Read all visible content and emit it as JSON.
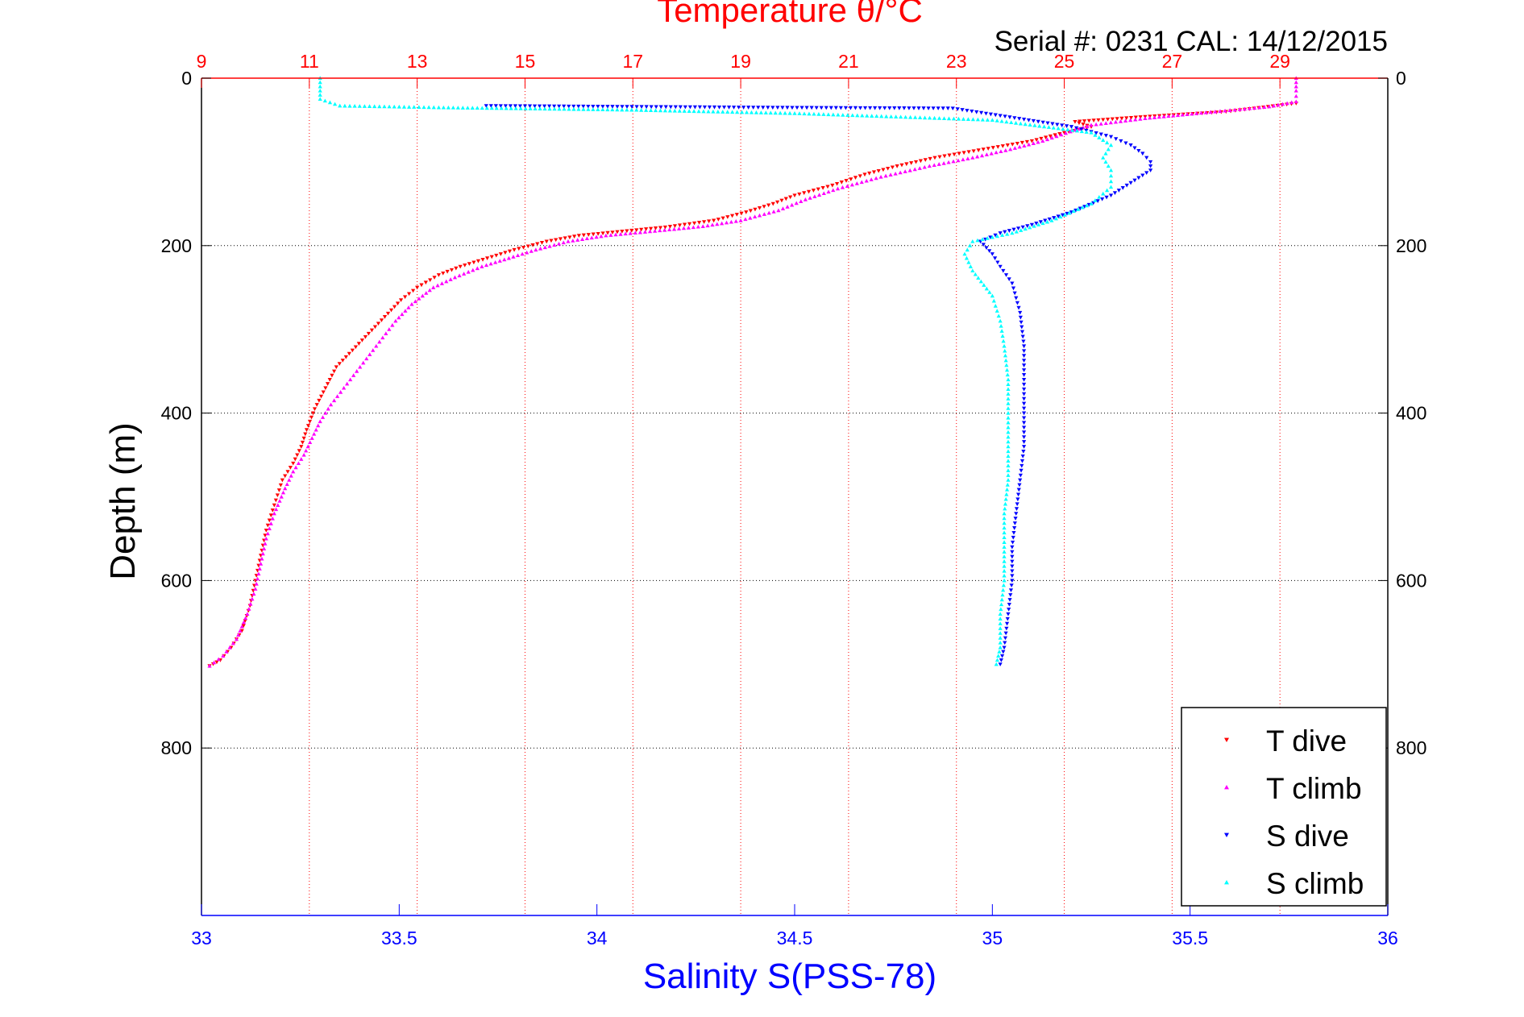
{
  "figure": {
    "title": "Temperature θ/°C",
    "subtitle": "Serial #: 0231  CAL: 14/12/2015",
    "colors": {
      "temperature_axis": "#ff0000",
      "salinity_axis": "#0000ff",
      "frame": "#000000",
      "grid": "#000000"
    }
  },
  "chart_data": [
    {
      "type": "scatter",
      "title": "Temperature θ/°C",
      "xlabel": "",
      "ylabel": "Depth (m)",
      "x_axis_position": "top",
      "xlim": [
        9,
        31
      ],
      "xticks": [
        9,
        11,
        13,
        15,
        17,
        19,
        21,
        23,
        25,
        27,
        29
      ],
      "ylim": [
        0,
        1000
      ],
      "y_reversed": true,
      "yticks": [
        0,
        200,
        400,
        600,
        800
      ],
      "grid": "dotted",
      "legend_position": "bottom-right",
      "series": [
        {
          "name": "T dive",
          "color": "#ff0000",
          "marker": "triangle-down",
          "points": [
            [
              29.3,
              30
            ],
            [
              28.0,
              40
            ],
            [
              26.5,
              46
            ],
            [
              25.2,
              52
            ],
            [
              25.5,
              58
            ],
            [
              25.0,
              65
            ],
            [
              24.4,
              75
            ],
            [
              23.5,
              85
            ],
            [
              22.6,
              95
            ],
            [
              21.9,
              105
            ],
            [
              21.3,
              115
            ],
            [
              20.7,
              128
            ],
            [
              20.0,
              140
            ],
            [
              19.6,
              150
            ],
            [
              19.1,
              160
            ],
            [
              18.5,
              170
            ],
            [
              17.6,
              178
            ],
            [
              16.8,
              183
            ],
            [
              16.0,
              188
            ],
            [
              15.4,
              195
            ],
            [
              14.8,
              205
            ],
            [
              14.3,
              215
            ],
            [
              13.8,
              225
            ],
            [
              13.4,
              235
            ],
            [
              13.0,
              250
            ],
            [
              12.7,
              265
            ],
            [
              12.4,
              285
            ],
            [
              12.1,
              305
            ],
            [
              11.8,
              325
            ],
            [
              11.5,
              345
            ],
            [
              11.3,
              370
            ],
            [
              11.1,
              395
            ],
            [
              10.95,
              420
            ],
            [
              10.85,
              440
            ],
            [
              10.7,
              460
            ],
            [
              10.5,
              480
            ],
            [
              10.35,
              510
            ],
            [
              10.2,
              540
            ],
            [
              10.1,
              570
            ],
            [
              10.0,
              600
            ],
            [
              9.9,
              630
            ],
            [
              9.75,
              660
            ],
            [
              9.55,
              680
            ],
            [
              9.35,
              695
            ],
            [
              9.15,
              702
            ]
          ]
        },
        {
          "name": "T climb",
          "color": "#ff00ff",
          "marker": "triangle-up",
          "points": [
            [
              9.15,
              702
            ],
            [
              9.4,
              690
            ],
            [
              9.65,
              670
            ],
            [
              9.85,
              640
            ],
            [
              10.0,
              610
            ],
            [
              10.1,
              580
            ],
            [
              10.2,
              550
            ],
            [
              10.35,
              520
            ],
            [
              10.55,
              490
            ],
            [
              10.7,
              470
            ],
            [
              10.9,
              450
            ],
            [
              11.05,
              430
            ],
            [
              11.2,
              410
            ],
            [
              11.4,
              390
            ],
            [
              11.7,
              365
            ],
            [
              12.0,
              340
            ],
            [
              12.3,
              315
            ],
            [
              12.6,
              290
            ],
            [
              12.9,
              270
            ],
            [
              13.3,
              250
            ],
            [
              13.7,
              238
            ],
            [
              14.2,
              225
            ],
            [
              14.7,
              215
            ],
            [
              15.2,
              205
            ],
            [
              15.8,
              195
            ],
            [
              16.5,
              188
            ],
            [
              17.5,
              182
            ],
            [
              18.3,
              177
            ],
            [
              19.0,
              170
            ],
            [
              19.7,
              158
            ],
            [
              20.2,
              145
            ],
            [
              20.8,
              132
            ],
            [
              21.6,
              118
            ],
            [
              22.5,
              105
            ],
            [
              23.3,
              95
            ],
            [
              24.0,
              85
            ],
            [
              24.6,
              75
            ],
            [
              25.2,
              62
            ],
            [
              25.5,
              56
            ],
            [
              26.5,
              48
            ],
            [
              27.8,
              40
            ],
            [
              28.8,
              34
            ],
            [
              29.3,
              28
            ],
            [
              29.3,
              15
            ],
            [
              29.3,
              0
            ]
          ]
        }
      ]
    },
    {
      "type": "scatter",
      "title": "",
      "xlabel": "Salinity S(PSS-78)",
      "ylabel": "Depth (m)",
      "x_axis_position": "bottom",
      "xlim": [
        33,
        36
      ],
      "xticks": [
        33,
        33.5,
        34,
        34.5,
        35,
        35.5,
        36
      ],
      "ylim": [
        0,
        1000
      ],
      "y_reversed": true,
      "yticks": [
        0,
        200,
        400,
        600,
        800
      ],
      "grid": "dotted",
      "legend_position": "bottom-right",
      "series": [
        {
          "name": "S dive",
          "color": "#0000ff",
          "marker": "triangle-down",
          "points": [
            [
              33.72,
              33
            ],
            [
              34.42,
              35
            ],
            [
              34.9,
              36
            ],
            [
              35.2,
              58
            ],
            [
              35.3,
              70
            ],
            [
              35.35,
              80
            ],
            [
              35.38,
              90
            ],
            [
              35.4,
              100
            ],
            [
              35.4,
              110
            ],
            [
              35.35,
              125
            ],
            [
              35.3,
              140
            ],
            [
              35.2,
              160
            ],
            [
              35.1,
              175
            ],
            [
              35.02,
              185
            ],
            [
              34.97,
              195
            ],
            [
              35.0,
              210
            ],
            [
              35.02,
              225
            ],
            [
              35.05,
              245
            ],
            [
              35.07,
              280
            ],
            [
              35.08,
              320
            ],
            [
              35.08,
              360
            ],
            [
              35.08,
              400
            ],
            [
              35.08,
              440
            ],
            [
              35.07,
              480
            ],
            [
              35.06,
              520
            ],
            [
              35.05,
              560
            ],
            [
              35.05,
              600
            ],
            [
              35.04,
              640
            ],
            [
              35.03,
              680
            ],
            [
              35.02,
              700
            ]
          ]
        },
        {
          "name": "S climb",
          "color": "#00ffff",
          "marker": "triangle-up",
          "points": [
            [
              35.01,
              700
            ],
            [
              35.02,
              680
            ],
            [
              35.02,
              640
            ],
            [
              35.03,
              600
            ],
            [
              35.03,
              560
            ],
            [
              35.03,
              520
            ],
            [
              35.04,
              480
            ],
            [
              35.04,
              440
            ],
            [
              35.04,
              400
            ],
            [
              35.04,
              360
            ],
            [
              35.03,
              320
            ],
            [
              35.02,
              290
            ],
            [
              35.0,
              260
            ],
            [
              34.95,
              230
            ],
            [
              34.93,
              210
            ],
            [
              34.95,
              195
            ],
            [
              35.05,
              185
            ],
            [
              35.15,
              170
            ],
            [
              35.25,
              150
            ],
            [
              35.3,
              130
            ],
            [
              35.3,
              110
            ],
            [
              35.28,
              95
            ],
            [
              35.3,
              80
            ],
            [
              35.25,
              65
            ],
            [
              35.0,
              50
            ],
            [
              34.5,
              42
            ],
            [
              34.1,
              38
            ],
            [
              33.6,
              35
            ],
            [
              33.35,
              33
            ],
            [
              33.3,
              25
            ],
            [
              33.3,
              10
            ],
            [
              33.3,
              0
            ]
          ]
        }
      ]
    }
  ]
}
